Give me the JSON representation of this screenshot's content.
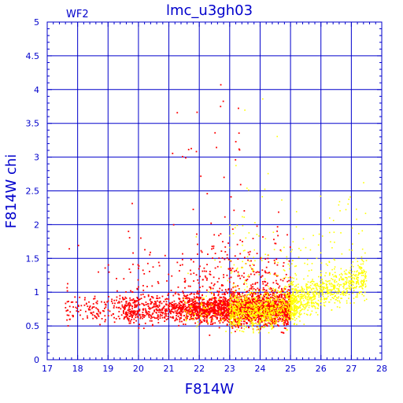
{
  "chart_data": {
    "type": "scatter",
    "title": "lmc_u3gh03",
    "subtitle": "WF2",
    "xlabel": "F814W",
    "ylabel": "F814W chi",
    "xlim": [
      17,
      28
    ],
    "ylim": [
      0,
      5
    ],
    "x_ticks": [
      "17",
      "18",
      "19",
      "20",
      "21",
      "22",
      "23",
      "24",
      "25",
      "26",
      "27",
      "28"
    ],
    "y_ticks": [
      "0",
      "0.5",
      "1",
      "1.5",
      "2",
      "2.5",
      "3",
      "3.5",
      "4",
      "4.5",
      "5"
    ],
    "grid": true,
    "axis_color": "#0000cc",
    "series": [
      {
        "color": "#ff0000",
        "x_range": [
          17.5,
          25.0
        ],
        "chi_core": [
          0.5,
          1.05
        ],
        "approx_count": 3200
      },
      {
        "color": "#ffff00",
        "x_range": [
          21.5,
          27.5
        ],
        "chi_core": [
          0.6,
          1.4
        ],
        "approx_count": 1800
      }
    ]
  }
}
